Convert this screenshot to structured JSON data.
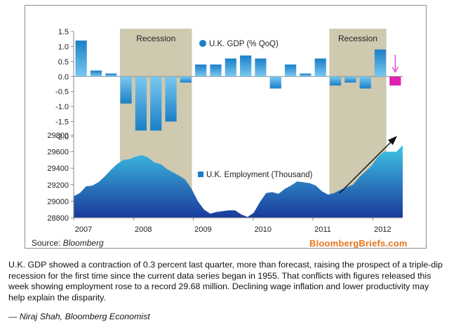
{
  "source": {
    "label": "Source:",
    "name": "Bloomberg"
  },
  "brand": "BloombergBriefs.com",
  "caption": "U.K. GDP showed a contraction of 0.3 percent last quarter, more than forecast, raising the prospect of a triple-dip recession for the first time since the current data series began in 1955. That conflicts with figures released this week showing employment rose to a record 29.68 million. Declining wage inflation and lower productivity may help explain the disparity.",
  "byline": "— Niraj Shah, Bloomberg Economist",
  "colors": {
    "bar": "#1a7fc8",
    "bar_light": "#7ac8ee",
    "bar_latest": "#e020b0",
    "area_dark": "#1a3a9c",
    "area_light": "#3ec6e6",
    "recession": "#cfc9b0",
    "arrow_magenta": "#e040c8"
  },
  "chart_data": [
    {
      "type": "bar",
      "title": "",
      "series": [
        {
          "name": "U.K. GDP (% QoQ)",
          "values": [
            1.2,
            0.2,
            0.1,
            -0.9,
            -1.8,
            -1.8,
            -1.5,
            -0.2,
            0.4,
            0.4,
            0.6,
            0.7,
            0.6,
            -0.4,
            0.4,
            0.1,
            0.6,
            -0.3,
            -0.2,
            -0.4,
            0.9,
            -0.3
          ]
        }
      ],
      "categories": [
        "2007Q1",
        "2007Q2",
        "2007Q3",
        "2007Q4",
        "2008Q1",
        "2008Q2",
        "2008Q3",
        "2008Q4",
        "2009Q1",
        "2009Q2",
        "2009Q3",
        "2009Q4",
        "2010Q1",
        "2010Q2",
        "2010Q3",
        "2010Q4",
        "2011Q1",
        "2011Q2",
        "2011Q3",
        "2011Q4",
        "2012Q1",
        "2012Q2"
      ],
      "ylim": [
        -2.0,
        1.5
      ],
      "yticks": [
        "1.5",
        "1.0",
        "0.5",
        "0.0",
        "-0.5",
        "-1.0",
        "-1.5",
        "-2.0"
      ],
      "recession_labels": [
        "Recession",
        "Recession"
      ],
      "recession_quarters": [
        [
          3,
          7
        ],
        [
          17,
          20
        ]
      ]
    },
    {
      "type": "area",
      "series": [
        {
          "name": "U.K. Employment (Thousand)",
          "values": [
            29060,
            29100,
            29180,
            29190,
            29230,
            29300,
            29380,
            29450,
            29500,
            29510,
            29540,
            29560,
            29530,
            29470,
            29450,
            29390,
            29350,
            29310,
            29260,
            29150,
            29000,
            28900,
            28850,
            28870,
            28880,
            28890,
            28890,
            28840,
            28810,
            28860,
            28990,
            29100,
            29110,
            29090,
            29150,
            29190,
            29240,
            29230,
            29220,
            29190,
            29120,
            29080,
            29100,
            29140,
            29170,
            29200,
            29290,
            29360,
            29430,
            29540,
            29600,
            29600,
            29600,
            29680
          ]
        }
      ],
      "ylim": [
        28800,
        29800
      ],
      "yticks": [
        "29800",
        "29600",
        "29400",
        "29200",
        "29000",
        "28800"
      ],
      "x_labels": [
        "2007",
        "2008",
        "2009",
        "2010",
        "2011",
        "2012"
      ]
    }
  ]
}
